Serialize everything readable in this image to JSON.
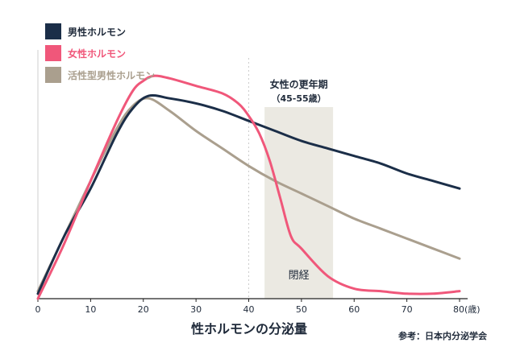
{
  "chart_data": {
    "type": "line",
    "title": "",
    "xlabel": "性ホルモンの分泌量",
    "ylabel": "",
    "x_ticks": [
      "0",
      "10",
      "20",
      "30",
      "40",
      "50",
      "60",
      "70",
      "80(歳)"
    ],
    "xlim": [
      0,
      80
    ],
    "ylim": [
      0,
      100
    ],
    "grid": false,
    "legend_position": "top-left",
    "series": [
      {
        "name": "男性ホルモン",
        "color": "#1b2e48",
        "x": [
          0,
          5,
          10,
          15,
          18,
          21,
          25,
          30,
          35,
          40,
          45,
          50,
          55,
          60,
          65,
          70,
          75,
          80
        ],
        "y": [
          2,
          25,
          44,
          66,
          76,
          81,
          80,
          78,
          75,
          71,
          67,
          63,
          60,
          57,
          54,
          50,
          47,
          44
        ]
      },
      {
        "name": "女性ホルモン",
        "color": "#f0577a",
        "x": [
          0,
          5,
          10,
          15,
          18,
          20,
          22,
          25,
          30,
          35,
          38,
          40,
          42,
          44,
          46,
          48,
          50,
          55,
          60,
          65,
          70,
          75,
          80
        ],
        "y": [
          0,
          22,
          47,
          71,
          83,
          87,
          89,
          88,
          85,
          82,
          78,
          73,
          66,
          55,
          40,
          25,
          20,
          9,
          4,
          3,
          2,
          2,
          3
        ]
      },
      {
        "name": "活性型男性ホルモン",
        "color": "#aa9f8e",
        "x": [
          0,
          5,
          10,
          15,
          18,
          21,
          25,
          30,
          35,
          40,
          45,
          50,
          55,
          60,
          65,
          70,
          75,
          80
        ],
        "y": [
          3,
          25,
          47,
          68,
          77,
          80,
          75,
          67,
          60,
          53,
          47,
          42,
          37,
          32,
          28,
          24,
          20,
          16
        ]
      }
    ],
    "annotations": {
      "band_range": [
        43,
        56
      ],
      "band_label": "女性の更年期",
      "band_sublabel": "（45-55歳）",
      "band_inner_label": "閉経",
      "reference_line_x": 40,
      "source": "参考：日本内分泌学会"
    }
  },
  "colors": {
    "band": "#ebe9e2",
    "axis": "#222222",
    "ref_line": "#cccccc",
    "text": "#1f2a3a"
  }
}
